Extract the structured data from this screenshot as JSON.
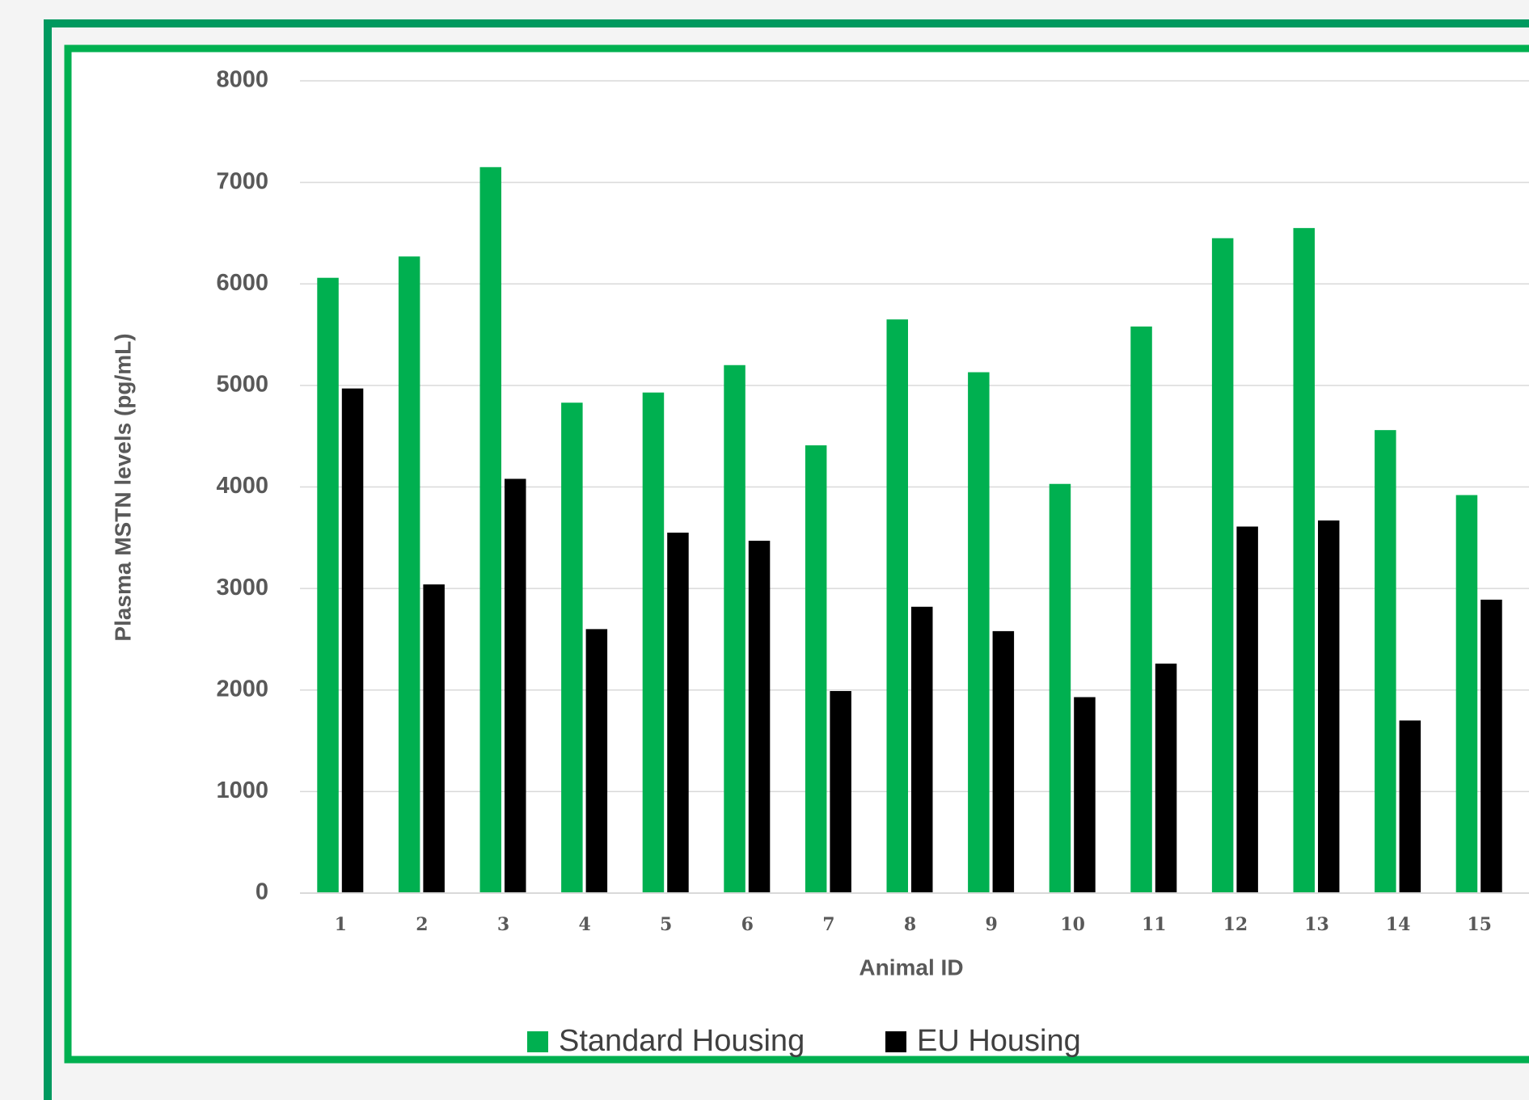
{
  "chart_data": {
    "type": "bar",
    "y_axis_label": "Plasma MSTN levels (pg/mL)",
    "x_axis_label": "Animal ID",
    "categories": [
      "1",
      "2",
      "3",
      "4",
      "5",
      "6",
      "7",
      "8",
      "9",
      "10",
      "11",
      "12",
      "13",
      "14",
      "15"
    ],
    "series": [
      {
        "name": "Standard Housing",
        "color": "#00b050",
        "values": [
          6060,
          6270,
          7150,
          4830,
          4930,
          5200,
          4410,
          5650,
          5130,
          4030,
          5580,
          6450,
          6550,
          4560,
          3920
        ]
      },
      {
        "name": "EU Housing",
        "color": "#000000",
        "values": [
          4970,
          3040,
          4080,
          2600,
          3550,
          3470,
          1990,
          2820,
          2580,
          1930,
          2260,
          3610,
          3670,
          1700,
          2890
        ]
      }
    ],
    "ylim": [
      0,
      8000
    ],
    "yticks": [
      0,
      1000,
      2000,
      3000,
      4000,
      5000,
      6000,
      7000,
      8000
    ],
    "grid": true,
    "legend": "bottom"
  }
}
